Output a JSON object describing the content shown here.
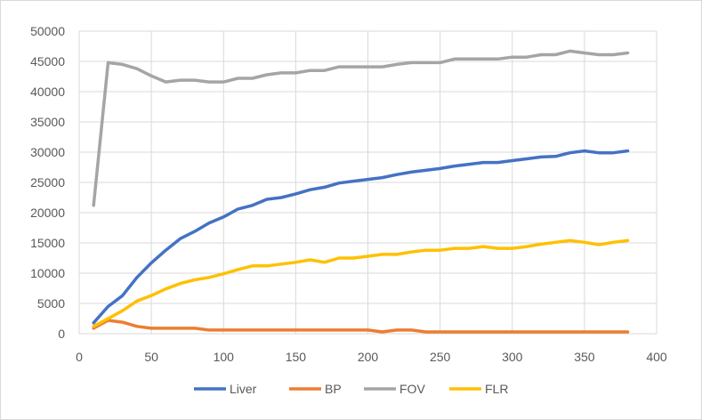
{
  "chart_data": {
    "type": "line",
    "title": "",
    "xlabel": "",
    "ylabel": "",
    "xlim": [
      0,
      400
    ],
    "ylim": [
      0,
      50000
    ],
    "x_ticks": [
      "0",
      "50",
      "100",
      "150",
      "200",
      "250",
      "300",
      "350",
      "400"
    ],
    "y_ticks": [
      "0",
      "5000",
      "10000",
      "15000",
      "20000",
      "25000",
      "30000",
      "35000",
      "40000",
      "45000",
      "50000"
    ],
    "grid": "major vertical and horizontal",
    "legend_position": "bottom",
    "x": [
      10,
      20,
      30,
      40,
      50,
      60,
      70,
      80,
      90,
      100,
      110,
      120,
      130,
      140,
      150,
      160,
      170,
      180,
      190,
      200,
      210,
      220,
      230,
      240,
      250,
      260,
      270,
      280,
      290,
      300,
      310,
      320,
      330,
      340,
      350,
      360,
      370,
      380
    ],
    "series": [
      {
        "name": "Liver",
        "color": "#4472C4",
        "values": [
          1800,
          4500,
          6300,
          9300,
          11700,
          13800,
          15700,
          16900,
          18300,
          19300,
          20600,
          21200,
          22200,
          22500,
          23100,
          23800,
          24200,
          24900,
          25200,
          25500,
          25800,
          26300,
          26700,
          27000,
          27300,
          27700,
          28000,
          28300,
          28300,
          28600,
          28900,
          29200,
          29300,
          29900,
          30200,
          29900,
          29900,
          30200
        ]
      },
      {
        "name": "BP",
        "color": "#ED7D31",
        "values": [
          900,
          2200,
          1900,
          1200,
          900,
          900,
          900,
          900,
          600,
          600,
          600,
          600,
          600,
          600,
          600,
          600,
          600,
          600,
          600,
          600,
          300,
          600,
          600,
          300,
          300,
          300,
          300,
          300,
          300,
          300,
          300,
          300,
          300,
          300,
          300,
          300,
          300,
          300
        ]
      },
      {
        "name": "FOV",
        "color": "#A5A5A5",
        "values": [
          21200,
          44800,
          44500,
          43800,
          42600,
          41600,
          41900,
          41900,
          41600,
          41600,
          42200,
          42200,
          42800,
          43100,
          43100,
          43500,
          43500,
          44100,
          44100,
          44100,
          44100,
          44500,
          44800,
          44800,
          44800,
          45400,
          45400,
          45400,
          45400,
          45700,
          45700,
          46100,
          46100,
          46700,
          46400,
          46100,
          46100,
          46400
        ]
      },
      {
        "name": "FLR",
        "color": "#FFC000",
        "values": [
          1200,
          2500,
          3800,
          5400,
          6300,
          7400,
          8300,
          8900,
          9300,
          9900,
          10600,
          11200,
          11200,
          11500,
          11800,
          12200,
          11800,
          12500,
          12500,
          12800,
          13100,
          13100,
          13500,
          13800,
          13800,
          14100,
          14100,
          14400,
          14100,
          14100,
          14400,
          14800,
          15100,
          15400,
          15100,
          14700,
          15100,
          15400
        ]
      }
    ]
  }
}
